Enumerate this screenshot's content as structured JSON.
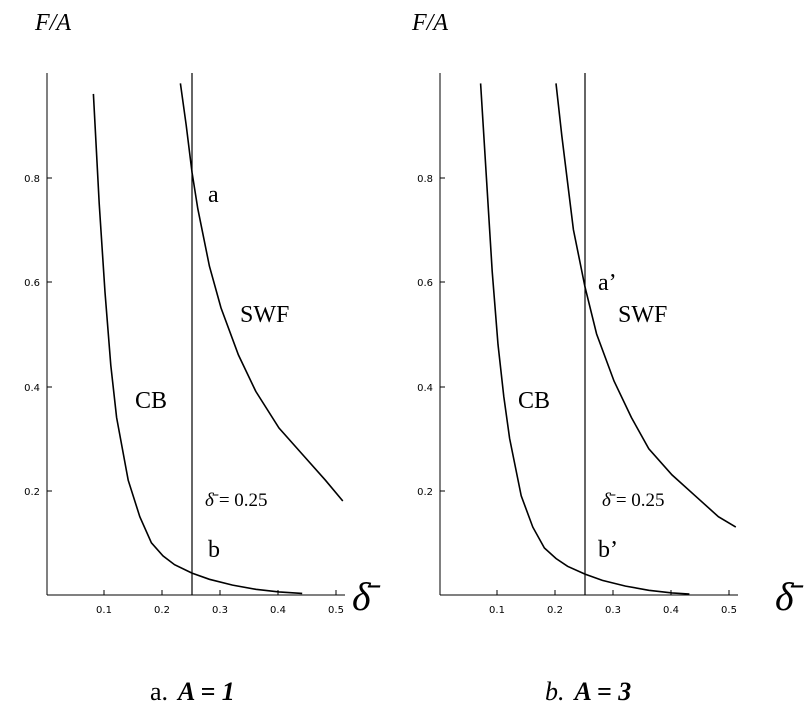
{
  "chart_data": [
    {
      "type": "line",
      "ylabel": "F/A",
      "xlabel": "δ̄",
      "xlim": [
        0,
        0.51
      ],
      "ylim": [
        0,
        1
      ],
      "xticks": [
        "0.1",
        "0.2",
        "0.3",
        "0.4",
        "0.5"
      ],
      "yticks": [
        "0.2",
        "0.4",
        "0.6",
        "0.8"
      ],
      "vline": {
        "x": 0.25,
        "label_sym": "δ̄",
        "label_val": "= 0.25"
      },
      "series": [
        {
          "name": "CB",
          "x": [
            0.08,
            0.09,
            0.1,
            0.11,
            0.12,
            0.14,
            0.16,
            0.18,
            0.2,
            0.22,
            0.25,
            0.28,
            0.32,
            0.36,
            0.4,
            0.44
          ],
          "y": [
            0.96,
            0.75,
            0.58,
            0.44,
            0.34,
            0.22,
            0.15,
            0.1,
            0.075,
            0.058,
            0.042,
            0.03,
            0.019,
            0.011,
            0.006,
            0.003
          ]
        },
        {
          "name": "SWF",
          "x": [
            0.23,
            0.24,
            0.25,
            0.26,
            0.28,
            0.3,
            0.33,
            0.36,
            0.4,
            0.44,
            0.48,
            0.51
          ],
          "y": [
            0.98,
            0.9,
            0.81,
            0.74,
            0.63,
            0.55,
            0.46,
            0.39,
            0.32,
            0.27,
            0.22,
            0.18
          ]
        }
      ],
      "annotations": {
        "upper": "a",
        "lower": "b",
        "cb": "CB",
        "swf": "SWF"
      },
      "caption": {
        "prefix": "a.",
        "formula": "A = 1"
      }
    },
    {
      "type": "line",
      "ylabel": "F/A",
      "xlabel": "δ̄",
      "xlim": [
        0,
        0.51
      ],
      "ylim": [
        0,
        1
      ],
      "xticks": [
        "0.1",
        "0.2",
        "0.3",
        "0.4",
        "0.5"
      ],
      "yticks": [
        "0.2",
        "0.4",
        "0.6",
        "0.8"
      ],
      "vline": {
        "x": 0.25,
        "label_sym": "δ̄",
        "label_val": "= 0.25"
      },
      "series": [
        {
          "name": "CB",
          "x": [
            0.07,
            0.08,
            0.09,
            0.1,
            0.11,
            0.12,
            0.14,
            0.16,
            0.18,
            0.2,
            0.22,
            0.25,
            0.28,
            0.32,
            0.36,
            0.4,
            0.43
          ],
          "y": [
            0.98,
            0.8,
            0.62,
            0.48,
            0.38,
            0.3,
            0.19,
            0.13,
            0.09,
            0.07,
            0.055,
            0.04,
            0.028,
            0.017,
            0.009,
            0.004,
            0.002
          ]
        },
        {
          "name": "SWF",
          "x": [
            0.2,
            0.21,
            0.22,
            0.23,
            0.25,
            0.27,
            0.3,
            0.33,
            0.36,
            0.4,
            0.44,
            0.48,
            0.51
          ],
          "y": [
            0.98,
            0.88,
            0.79,
            0.7,
            0.59,
            0.5,
            0.41,
            0.34,
            0.28,
            0.23,
            0.19,
            0.15,
            0.13
          ]
        }
      ],
      "annotations": {
        "upper": "a’",
        "lower": "b’",
        "cb": "CB",
        "swf": "SWF"
      },
      "caption": {
        "prefix": "b.",
        "formula": "A = 3"
      }
    }
  ]
}
